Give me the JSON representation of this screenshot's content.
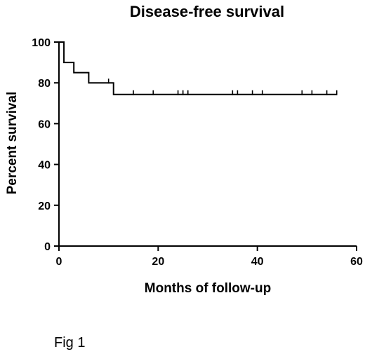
{
  "chart_data": {
    "type": "line",
    "subtype": "kaplan-meier step curve",
    "title": "Disease-free survival",
    "xlabel": "Months of follow-up",
    "ylabel": "Percent survival",
    "xlim": [
      0,
      60
    ],
    "ylim": [
      0,
      100
    ],
    "xticks": [
      0,
      20,
      40,
      60
    ],
    "yticks": [
      0,
      20,
      40,
      60,
      80,
      100
    ],
    "grid": false,
    "series": [
      {
        "color": "#000000",
        "steps": [
          {
            "x": 0,
            "y": 100
          },
          {
            "x": 1,
            "y": 90
          },
          {
            "x": 3,
            "y": 85
          },
          {
            "x": 6,
            "y": 80
          },
          {
            "x": 11,
            "y": 74.3
          },
          {
            "x": 56,
            "y": 74.3
          }
        ],
        "censored": [
          10,
          15,
          19,
          24,
          25,
          26,
          35,
          36,
          39,
          41,
          49,
          51,
          54,
          56
        ]
      }
    ]
  },
  "caption": "Fig 1"
}
